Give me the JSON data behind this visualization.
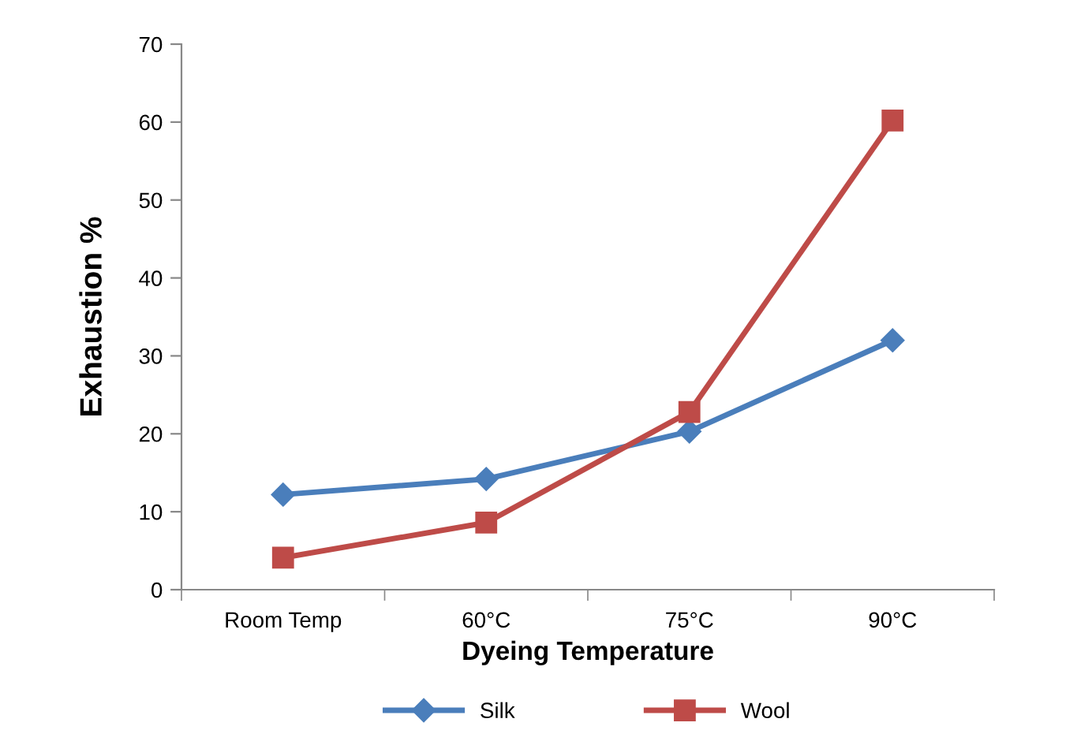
{
  "chart_data": {
    "type": "line",
    "xlabel": "Dyeing Temperature",
    "ylabel": "Exhaustion %",
    "categories": [
      "Room Temp",
      "60°C",
      "75°C",
      "90°C"
    ],
    "series": [
      {
        "name": "Silk",
        "color": "#4a7ebb",
        "marker": "diamond",
        "values": [
          12.2,
          14.2,
          20.3,
          32
        ]
      },
      {
        "name": "Wool",
        "color": "#be4b48",
        "marker": "square",
        "values": [
          4.1,
          8.6,
          22.8,
          60.2
        ]
      }
    ],
    "ylim": [
      0,
      70
    ],
    "yticks": [
      0,
      10,
      20,
      30,
      40,
      50,
      60,
      70
    ],
    "grid": false,
    "legend": "bottom",
    "line_style": "solid"
  }
}
